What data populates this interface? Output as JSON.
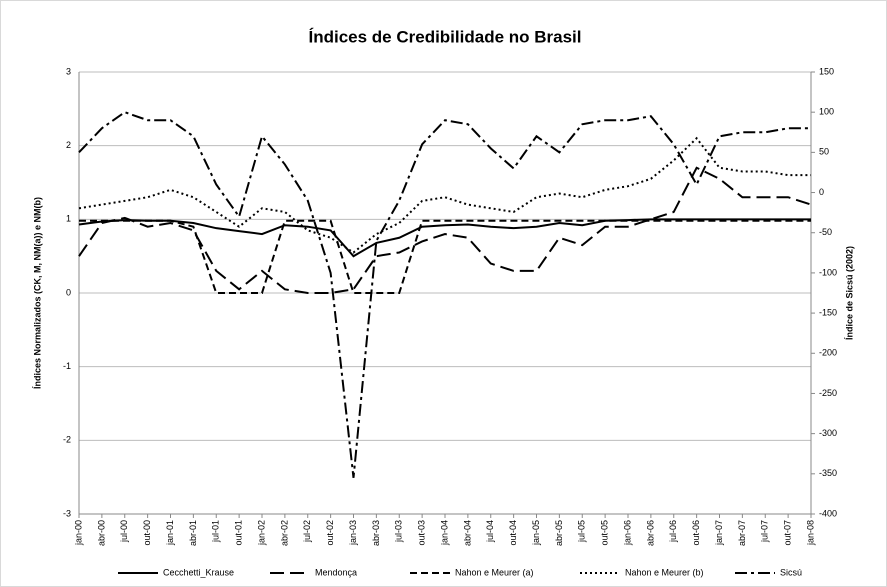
{
  "chart_data": {
    "type": "line",
    "title": "Índices de Credibilidade no Brasil",
    "y_label": "Índices Normalizados (CK, M, NM(a)) e NM(b)",
    "y2_label": "Índice de Sicsú (2002)",
    "categories": [
      "jan-00",
      "abr-00",
      "jul-00",
      "out-00",
      "jan-01",
      "abr-01",
      "jul-01",
      "out-01",
      "jan-02",
      "abr-02",
      "jul-02",
      "out-02",
      "jan-03",
      "abr-03",
      "jul-03",
      "out-03",
      "jan-04",
      "abr-04",
      "jul-04",
      "out-04",
      "jan-05",
      "abr-05",
      "jul-05",
      "out-05",
      "jan-06",
      "abr-06",
      "jul-06",
      "out-06",
      "jan-07",
      "abr-07",
      "jul-07",
      "out-07",
      "jan-08"
    ],
    "ylim": [
      -3,
      3
    ],
    "yticks": [
      -3,
      -2,
      -1,
      0,
      1,
      2,
      3
    ],
    "y2lim": [
      -400,
      150
    ],
    "y2ticks": [
      -400,
      -350,
      -300,
      -250,
      -200,
      -150,
      -100,
      -50,
      0,
      50,
      100,
      150
    ],
    "grid": true,
    "legend": "bottom",
    "series": [
      {
        "name": "Cecchetti_Krause",
        "color": "#000000",
        "dash": "solid",
        "values": [
          0.93,
          0.97,
          0.99,
          0.98,
          0.98,
          0.95,
          0.88,
          0.84,
          0.8,
          0.92,
          0.9,
          0.85,
          0.5,
          0.68,
          0.75,
          0.9,
          0.92,
          0.93,
          0.9,
          0.88,
          0.9,
          0.95,
          0.92,
          0.98,
          0.99,
          1,
          1,
          1,
          1,
          1,
          1,
          1,
          1
        ]
      },
      {
        "name": "Mendonça",
        "color": "#000000",
        "dash": "long",
        "values": [
          0.5,
          0.95,
          1.02,
          0.9,
          0.95,
          0.85,
          0.3,
          0.05,
          0.3,
          0.05,
          0,
          0,
          0.05,
          0.5,
          0.55,
          0.7,
          0.8,
          0.75,
          0.4,
          0.3,
          0.3,
          0.75,
          0.65,
          0.9,
          0.9,
          1.0,
          1.1,
          1.7,
          1.55,
          1.3,
          1.3,
          1.3,
          1.2
        ]
      },
      {
        "name": "Nahon e Meurer (a)",
        "color": "#000000",
        "dash": "short",
        "values": [
          0.98,
          0.98,
          0.98,
          0.98,
          0.98,
          0.9,
          0,
          0,
          0,
          0.98,
          0.98,
          0.98,
          0,
          0,
          0,
          0.98,
          0.98,
          0.98,
          0.98,
          0.98,
          0.98,
          0.98,
          0.98,
          0.98,
          0.98,
          0.98,
          0.98,
          0.98,
          0.98,
          0.98,
          0.98,
          0.98,
          0.98
        ]
      },
      {
        "name": "Nahon e Meurer (b)",
        "color": "#000000",
        "dash": "dot",
        "values": [
          1.15,
          1.2,
          1.25,
          1.3,
          1.4,
          1.3,
          1.1,
          0.9,
          1.15,
          1.1,
          0.85,
          0.75,
          0.55,
          0.8,
          0.95,
          1.25,
          1.3,
          1.2,
          1.15,
          1.1,
          1.3,
          1.35,
          1.3,
          1.4,
          1.45,
          1.55,
          1.8,
          2.1,
          1.7,
          1.65,
          1.65,
          1.6,
          1.6
        ]
      },
      {
        "name": "Sicsú",
        "color": "#000000",
        "dash": "dashdot",
        "axis": "y2",
        "values": [
          50,
          80,
          100,
          90,
          90,
          70,
          10,
          -30,
          70,
          35,
          -10,
          -100,
          -355,
          -60,
          -10,
          60,
          90,
          85,
          55,
          30,
          70,
          50,
          85,
          90,
          90,
          95,
          60,
          10,
          70,
          75,
          75,
          80,
          80
        ]
      }
    ]
  }
}
